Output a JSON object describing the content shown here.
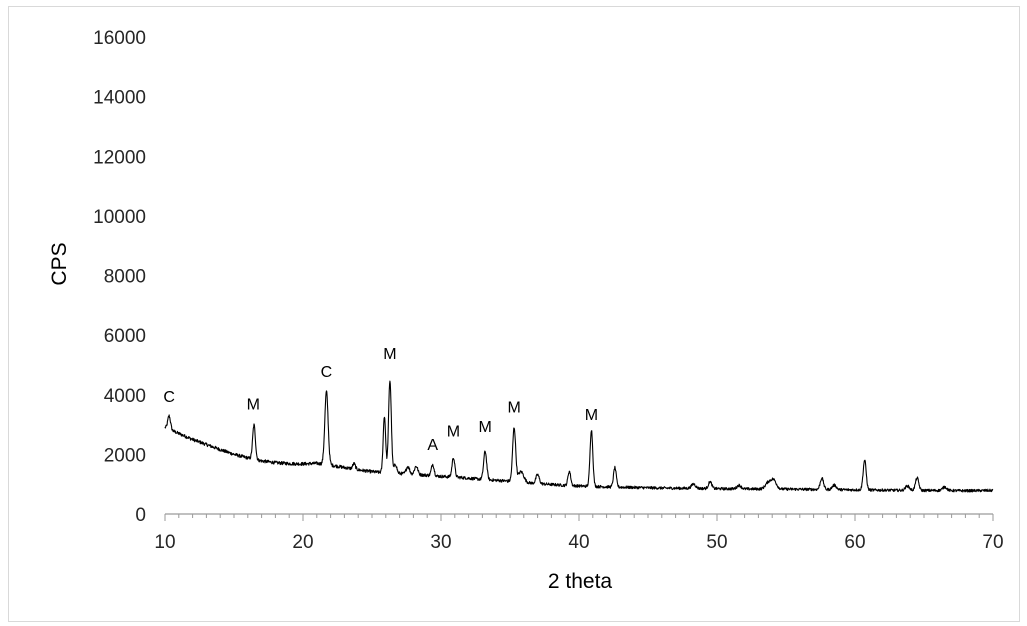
{
  "chart_data": {
    "type": "line",
    "title": "",
    "xlabel": "2 theta",
    "ylabel": "CPS",
    "xlim": [
      10,
      70
    ],
    "ylim": [
      0,
      16000
    ],
    "x_ticks": [
      10,
      20,
      30,
      40,
      50,
      60,
      70
    ],
    "y_ticks": [
      0,
      2000,
      4000,
      6000,
      8000,
      10000,
      12000,
      14000,
      16000
    ],
    "x_minor_step": 1,
    "grid": false,
    "legend": "none",
    "line_color": "#000000",
    "background_trend": [
      [
        10.0,
        2900
      ],
      [
        11.0,
        2700
      ],
      [
        12.0,
        2500
      ],
      [
        13.0,
        2330
      ],
      [
        14.0,
        2160
      ],
      [
        15.0,
        2000
      ],
      [
        16.0,
        1880
      ],
      [
        17.0,
        1780
      ],
      [
        18.0,
        1720
      ],
      [
        19.0,
        1690
      ],
      [
        20.0,
        1680
      ],
      [
        21.0,
        1700
      ],
      [
        22.0,
        1640
      ],
      [
        23.0,
        1560
      ],
      [
        24.0,
        1480
      ],
      [
        25.0,
        1420
      ],
      [
        26.0,
        1380
      ],
      [
        27.0,
        1360
      ],
      [
        28.0,
        1330
      ],
      [
        29.0,
        1300
      ],
      [
        30.0,
        1260
      ],
      [
        31.0,
        1240
      ],
      [
        32.0,
        1200
      ],
      [
        33.0,
        1160
      ],
      [
        34.0,
        1130
      ],
      [
        35.0,
        1100
      ],
      [
        36.0,
        1060
      ],
      [
        37.0,
        1020
      ],
      [
        38.0,
        990
      ],
      [
        39.0,
        960
      ],
      [
        40.0,
        940
      ],
      [
        42.0,
        910
      ],
      [
        44.0,
        890
      ],
      [
        46.0,
        870
      ],
      [
        48.0,
        860
      ],
      [
        50.0,
        850
      ],
      [
        52.0,
        840
      ],
      [
        54.0,
        840
      ],
      [
        56.0,
        830
      ],
      [
        58.0,
        820
      ],
      [
        60.0,
        810
      ],
      [
        62.0,
        800
      ],
      [
        64.0,
        790
      ],
      [
        66.0,
        790
      ],
      [
        68.0,
        780
      ],
      [
        70.0,
        790
      ]
    ],
    "peaks": [
      {
        "x": 10.3,
        "height": 450,
        "width": 0.1
      },
      {
        "x": 16.45,
        "height": 1150,
        "width": 0.1
      },
      {
        "x": 21.7,
        "height": 2450,
        "width": 0.12
      },
      {
        "x": 23.7,
        "height": 180,
        "width": 0.1
      },
      {
        "x": 25.9,
        "height": 1900,
        "width": 0.09
      },
      {
        "x": 26.3,
        "height": 3100,
        "width": 0.1
      },
      {
        "x": 26.7,
        "height": 300,
        "width": 0.1
      },
      {
        "x": 27.6,
        "height": 250,
        "width": 0.12
      },
      {
        "x": 28.2,
        "height": 280,
        "width": 0.12
      },
      {
        "x": 29.4,
        "height": 380,
        "width": 0.1
      },
      {
        "x": 30.9,
        "height": 650,
        "width": 0.1
      },
      {
        "x": 33.2,
        "height": 950,
        "width": 0.11
      },
      {
        "x": 35.3,
        "height": 1800,
        "width": 0.11
      },
      {
        "x": 35.8,
        "height": 350,
        "width": 0.2
      },
      {
        "x": 37.0,
        "height": 300,
        "width": 0.12
      },
      {
        "x": 39.3,
        "height": 480,
        "width": 0.1
      },
      {
        "x": 40.9,
        "height": 1900,
        "width": 0.1
      },
      {
        "x": 42.6,
        "height": 650,
        "width": 0.1
      },
      {
        "x": 48.3,
        "height": 150,
        "width": 0.15
      },
      {
        "x": 49.5,
        "height": 230,
        "width": 0.12
      },
      {
        "x": 51.6,
        "height": 120,
        "width": 0.15
      },
      {
        "x": 53.7,
        "height": 200,
        "width": 0.2
      },
      {
        "x": 54.1,
        "height": 300,
        "width": 0.2
      },
      {
        "x": 57.6,
        "height": 380,
        "width": 0.12
      },
      {
        "x": 58.5,
        "height": 150,
        "width": 0.15
      },
      {
        "x": 60.7,
        "height": 1000,
        "width": 0.11
      },
      {
        "x": 63.8,
        "height": 150,
        "width": 0.15
      },
      {
        "x": 64.5,
        "height": 420,
        "width": 0.12
      },
      {
        "x": 66.5,
        "height": 120,
        "width": 0.15
      }
    ],
    "noise_amplitude": 110,
    "annotations": [
      {
        "text": "C",
        "x": 10.3,
        "y": 3750
      },
      {
        "text": "M",
        "x": 16.4,
        "y": 3500
      },
      {
        "text": "C",
        "x": 21.7,
        "y": 4600
      },
      {
        "text": "M",
        "x": 26.3,
        "y": 5200
      },
      {
        "text": "A",
        "x": 29.4,
        "y": 2150
      },
      {
        "text": "M",
        "x": 30.9,
        "y": 2600
      },
      {
        "text": "M",
        "x": 33.2,
        "y": 2750
      },
      {
        "text": "M",
        "x": 35.3,
        "y": 3400
      },
      {
        "text": "M",
        "x": 40.9,
        "y": 3150
      }
    ]
  }
}
